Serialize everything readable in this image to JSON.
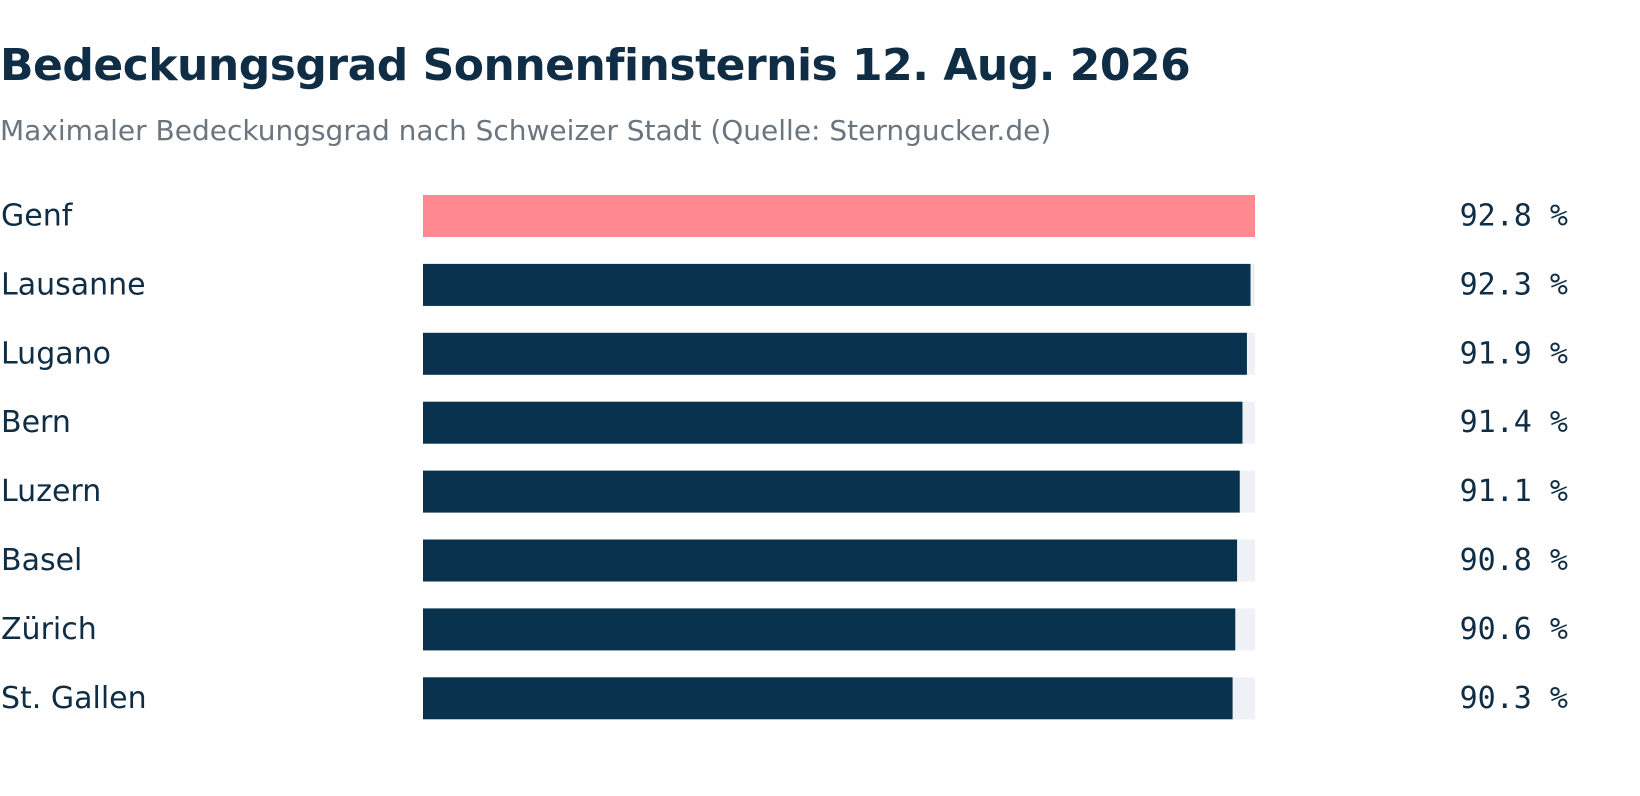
{
  "header": {
    "title": "Bedeckungsgrad Sonnenfinsternis 12. Aug. 2026",
    "subtitle": "Maximaler Bedeckungsgrad nach Schweizer Stadt (Quelle: Sterngucker.de)"
  },
  "colors": {
    "highlight": "#ff8891",
    "bar": "#08324d",
    "track": "#eef1f6",
    "text": "#0f2d45"
  },
  "chart_data": {
    "type": "bar",
    "orientation": "horizontal",
    "categories": [
      "Genf",
      "Lausanne",
      "Lugano",
      "Bern",
      "Luzern",
      "Basel",
      "Zürich",
      "St. Gallen"
    ],
    "values": [
      92.8,
      92.3,
      91.9,
      91.4,
      91.1,
      90.8,
      90.6,
      90.3
    ],
    "value_labels": [
      "92.8 %",
      "92.3 %",
      "91.9 %",
      "91.4 %",
      "91.1 %",
      "90.8 %",
      "90.6 %",
      "90.3 %"
    ],
    "highlight_index": 0,
    "xlim": [
      0,
      92.8
    ],
    "grid": false
  }
}
